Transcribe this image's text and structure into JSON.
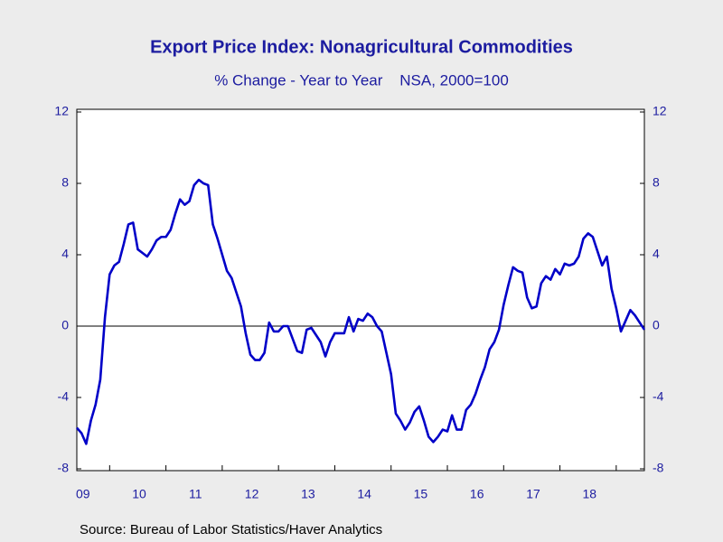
{
  "chart_data": {
    "type": "line",
    "title": "Export Price Index: Nonagricultural Commodities",
    "subtitle": "% Change - Year to Year    NSA, 2000=100",
    "source": "Source:  Bureau of Labor Statistics/Haver Analytics",
    "categories": [
      null,
      "09",
      null,
      null,
      null,
      null,
      null,
      null,
      null,
      null,
      null,
      null,
      null,
      "10",
      null,
      null,
      null,
      null,
      null,
      null,
      null,
      null,
      null,
      null,
      null,
      "11",
      null,
      null,
      null,
      null,
      null,
      null,
      null,
      null,
      null,
      null,
      null,
      "12",
      null,
      null,
      null,
      null,
      null,
      null,
      null,
      null,
      null,
      null,
      null,
      "13",
      null,
      null,
      null,
      null,
      null,
      null,
      null,
      null,
      null,
      null,
      null,
      "14",
      null,
      null,
      null,
      null,
      null,
      null,
      null,
      null,
      null,
      null,
      null,
      "15",
      null,
      null,
      null,
      null,
      null,
      null,
      null,
      null,
      null,
      null,
      null,
      "16",
      null,
      null,
      null,
      null,
      null,
      null,
      null,
      null,
      null,
      null,
      null,
      "17",
      null,
      null,
      null,
      null,
      null,
      null,
      null,
      null,
      null,
      null,
      null,
      "18",
      null,
      null,
      null,
      null,
      null,
      null,
      null,
      null,
      null,
      null,
      null,
      null
    ],
    "series": [
      {
        "color": "#0000c8",
        "values": [
          -5.7,
          -6.0,
          -6.6,
          -5.3,
          -4.4,
          -3.0,
          0.5,
          2.9,
          3.4,
          3.6,
          4.6,
          5.7,
          5.8,
          4.3,
          4.1,
          3.9,
          4.3,
          4.8,
          5.0,
          5.0,
          5.4,
          6.3,
          7.1,
          6.8,
          7.0,
          7.9,
          8.2,
          8.0,
          7.9,
          5.7,
          4.9,
          4.0,
          3.1,
          2.7,
          1.9,
          1.1,
          -0.4,
          -1.6,
          -1.9,
          -1.9,
          -1.5,
          0.2,
          -0.3,
          -0.3,
          0.0,
          0.0,
          -0.7,
          -1.4,
          -1.5,
          -0.2,
          -0.1,
          -0.5,
          -0.9,
          -1.7,
          -0.9,
          -0.4,
          -0.4,
          -0.4,
          0.5,
          -0.3,
          0.4,
          0.3,
          0.7,
          0.5,
          0.0,
          -0.3,
          -1.5,
          -2.7,
          -4.9,
          -5.3,
          -5.8,
          -5.4,
          -4.8,
          -4.5,
          -5.3,
          -6.2,
          -6.5,
          -6.2,
          -5.8,
          -5.9,
          -5.0,
          -5.8,
          -5.8,
          -4.7,
          -4.4,
          -3.8,
          -3.0,
          -2.3,
          -1.3,
          -0.9,
          -0.2,
          1.2,
          2.3,
          3.3,
          3.1,
          3.0,
          1.6,
          1.0,
          1.1,
          2.4,
          2.8,
          2.6,
          3.2,
          2.9,
          3.5,
          3.4,
          3.5,
          3.9,
          4.9,
          5.2,
          5.0,
          4.2,
          3.4,
          3.9,
          2.1,
          1.0,
          -0.3,
          0.3,
          0.9,
          0.6,
          0.2,
          -0.2
        ]
      }
    ],
    "ylim": [
      -8,
      12
    ],
    "yticks": [
      -8,
      -4,
      0,
      4,
      8,
      12
    ],
    "y2lim": [
      -8,
      12
    ],
    "y2ticks": [
      -8,
      -4,
      0,
      4,
      8,
      12
    ]
  }
}
